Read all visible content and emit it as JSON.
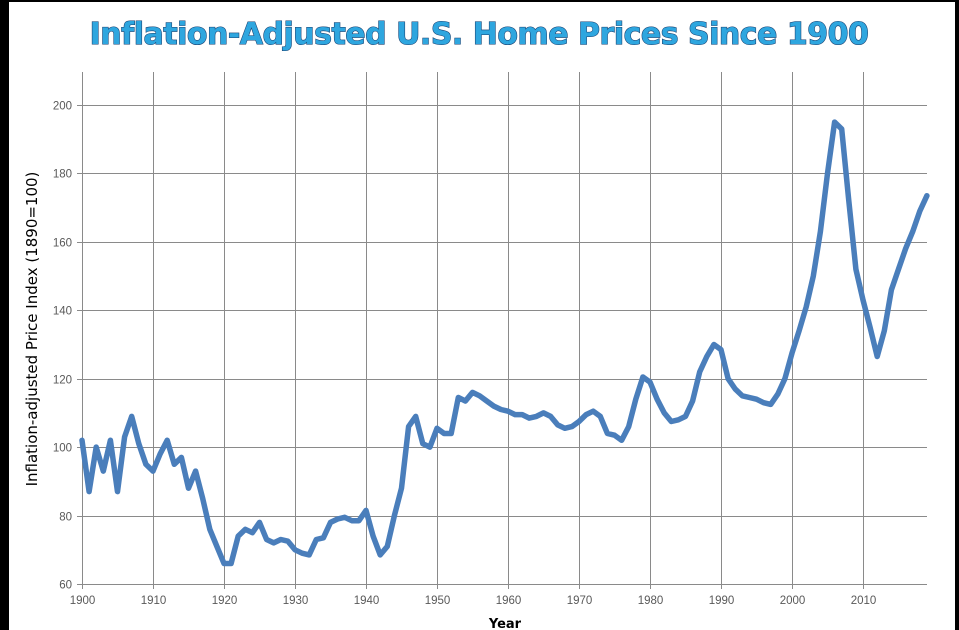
{
  "chart_data": {
    "type": "line",
    "title": "Inflation-Adjusted U.S. Home Prices Since 1900",
    "xlabel": "Year",
    "ylabel": "Inflation-adjusted  Price Index (1890=100)",
    "xlim": [
      1900,
      2019
    ],
    "ylim": [
      60,
      210
    ],
    "x_ticks": [
      1900,
      1910,
      1920,
      1930,
      1940,
      1950,
      1960,
      1970,
      1980,
      1990,
      2000,
      2010
    ],
    "y_ticks": [
      60,
      80,
      100,
      120,
      140,
      160,
      180,
      200
    ],
    "grid": true,
    "legend": "none",
    "series": [
      {
        "name": "Price Index",
        "color": "#4a7ebb",
        "x": [
          1900,
          1901,
          1902,
          1903,
          1904,
          1905,
          1906,
          1907,
          1908,
          1909,
          1910,
          1911,
          1912,
          1913,
          1914,
          1915,
          1916,
          1917,
          1918,
          1919,
          1920,
          1921,
          1922,
          1923,
          1924,
          1925,
          1926,
          1927,
          1928,
          1929,
          1930,
          1931,
          1932,
          1933,
          1934,
          1935,
          1936,
          1937,
          1938,
          1939,
          1940,
          1941,
          1942,
          1943,
          1944,
          1945,
          1946,
          1947,
          1948,
          1949,
          1950,
          1951,
          1952,
          1953,
          1954,
          1955,
          1956,
          1957,
          1958,
          1959,
          1960,
          1961,
          1962,
          1963,
          1964,
          1965,
          1966,
          1967,
          1968,
          1969,
          1970,
          1971,
          1972,
          1973,
          1974,
          1975,
          1976,
          1977,
          1978,
          1979,
          1980,
          1981,
          1982,
          1983,
          1984,
          1985,
          1986,
          1987,
          1988,
          1989,
          1990,
          1991,
          1992,
          1993,
          1994,
          1995,
          1996,
          1997,
          1998,
          1999,
          2000,
          2001,
          2002,
          2003,
          2004,
          2005,
          2006,
          2007,
          2008,
          2009,
          2010,
          2011,
          2012,
          2013,
          2014,
          2015,
          2016,
          2017,
          2018,
          2019
        ],
        "values": [
          102,
          87,
          100,
          93,
          102,
          87,
          103,
          109,
          101,
          95,
          93,
          98,
          102,
          95,
          97,
          88,
          93,
          85,
          76,
          71,
          66,
          66,
          74,
          76,
          75,
          78,
          73,
          72,
          73,
          72.5,
          70,
          69,
          68.5,
          73,
          73.5,
          78,
          79,
          79.5,
          78.5,
          78.5,
          81.5,
          74,
          68.5,
          71,
          80,
          88,
          106,
          109,
          101,
          100,
          105.5,
          104,
          104,
          114.5,
          113.5,
          116,
          115,
          113.5,
          112,
          111,
          110.5,
          109.5,
          109.5,
          108.5,
          109,
          110,
          109,
          106.5,
          105.5,
          106,
          107.5,
          109.5,
          110.5,
          109,
          104,
          103.5,
          102,
          106,
          114,
          120.5,
          119,
          114,
          110,
          107.5,
          108,
          109,
          113.5,
          122,
          126.5,
          130,
          128.5,
          120,
          117,
          115,
          114.5,
          114,
          113,
          112.5,
          115.5,
          120,
          127.5,
          134,
          141,
          150,
          163,
          180,
          195,
          193,
          172,
          152,
          143,
          135,
          126.5,
          134,
          146,
          152,
          158,
          163,
          169,
          173.5
        ]
      }
    ]
  }
}
